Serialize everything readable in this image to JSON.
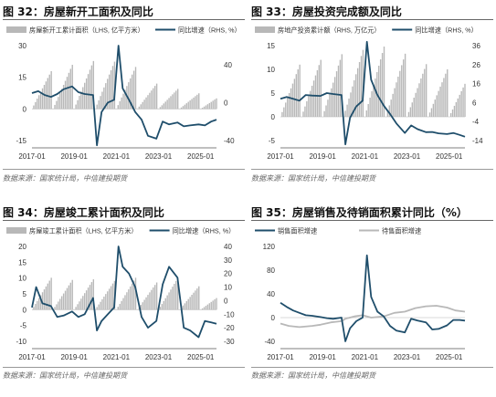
{
  "panels": [
    {
      "title": "图 32：房屋新开工面积及同比",
      "source": "数据来源：国家统计局，中信建投期货",
      "chart_data": {
        "type": "bar+line",
        "legend": [
          "房屋新开工累计面积（LHS, 亿平方米）",
          "同比增速（RHS, %）"
        ],
        "legend_placement": "top",
        "grid": false,
        "x_ticks": [
          "2017-01",
          "2019-01",
          "2021-01",
          "2023-01",
          "2025-01"
        ],
        "x_range": [
          2017.0,
          2025.75
        ],
        "ylim_left": [
          -15,
          30
        ],
        "yticks_left": [
          -15,
          0,
          15,
          30
        ],
        "ylim_right": [
          -40,
          60
        ],
        "yticks_right": [
          -40,
          0,
          40
        ],
        "bar_color": "#b8b8b8",
        "line_color": "#1f4e6b",
        "bars_annual_end": [
          17.9,
          20.9,
          22.7,
          22.4,
          19.9,
          12.0,
          9.5,
          7.4,
          6.1
        ],
        "line": [
          [
            2017.0,
            10
          ],
          [
            2017.3,
            12
          ],
          [
            2017.6,
            8
          ],
          [
            2017.9,
            6
          ],
          [
            2018.2,
            9
          ],
          [
            2018.5,
            14
          ],
          [
            2018.9,
            17
          ],
          [
            2019.2,
            11
          ],
          [
            2019.5,
            9
          ],
          [
            2019.9,
            8
          ],
          [
            2020.08,
            -45
          ],
          [
            2020.3,
            -10
          ],
          [
            2020.6,
            0
          ],
          [
            2020.9,
            3
          ],
          [
            2021.1,
            60
          ],
          [
            2021.3,
            15
          ],
          [
            2021.6,
            3
          ],
          [
            2021.9,
            -10
          ],
          [
            2022.2,
            -18
          ],
          [
            2022.5,
            -35
          ],
          [
            2022.9,
            -38
          ],
          [
            2023.2,
            -20
          ],
          [
            2023.5,
            -23
          ],
          [
            2023.9,
            -21
          ],
          [
            2024.2,
            -25
          ],
          [
            2024.5,
            -24
          ],
          [
            2024.9,
            -23
          ],
          [
            2025.2,
            -24
          ],
          [
            2025.5,
            -20
          ],
          [
            2025.75,
            -18
          ]
        ]
      }
    },
    {
      "title": "图 33：房屋投资完成额及同比",
      "source": "数据来源：国家统计局，中信建投期货",
      "chart_data": {
        "type": "bar+line",
        "legend": [
          "房地产投资累计额（RHS, 万亿元）",
          "同比增速（RHS, %）"
        ],
        "legend_placement": "top",
        "grid": false,
        "x_ticks": [
          "2017-01",
          "2019-01",
          "2021-01",
          "2023-01",
          "2025-01"
        ],
        "x_range": [
          2017.0,
          2025.75
        ],
        "ylim_left": [
          -5,
          15
        ],
        "yticks_left": [
          -5,
          0,
          5,
          10,
          15
        ],
        "ylim_right": [
          -14,
          36
        ],
        "yticks_right": [
          -14,
          -4,
          6,
          16,
          26,
          36
        ],
        "bar_color": "#b8b8b8",
        "line_color": "#1f4e6b",
        "bars_annual_end": [
          11.0,
          12.0,
          13.2,
          14.1,
          14.8,
          13.3,
          11.1,
          10.0,
          8.5
        ],
        "line": [
          [
            2017.0,
            8
          ],
          [
            2017.3,
            9
          ],
          [
            2017.6,
            8
          ],
          [
            2017.9,
            7
          ],
          [
            2018.2,
            10
          ],
          [
            2018.5,
            9.7
          ],
          [
            2018.9,
            9.5
          ],
          [
            2019.2,
            11
          ],
          [
            2019.5,
            10.5
          ],
          [
            2019.9,
            10
          ],
          [
            2020.08,
            -16
          ],
          [
            2020.3,
            -2
          ],
          [
            2020.6,
            4
          ],
          [
            2020.9,
            7
          ],
          [
            2021.1,
            38
          ],
          [
            2021.3,
            18
          ],
          [
            2021.6,
            10
          ],
          [
            2021.9,
            4.4
          ],
          [
            2022.2,
            0
          ],
          [
            2022.5,
            -5
          ],
          [
            2022.9,
            -10
          ],
          [
            2023.2,
            -6
          ],
          [
            2023.5,
            -8
          ],
          [
            2023.9,
            -9.6
          ],
          [
            2024.2,
            -9.5
          ],
          [
            2024.5,
            -10.2
          ],
          [
            2024.9,
            -10.6
          ],
          [
            2025.2,
            -10
          ],
          [
            2025.5,
            -11
          ],
          [
            2025.75,
            -12
          ]
        ]
      }
    },
    {
      "title": "图 34：房屋竣工累计面积及同比",
      "source": "数据来源：国家统计局，中信建投期货",
      "chart_data": {
        "type": "bar+line",
        "legend": [
          "房屋竣工累计面积（LHS, 亿平方米）",
          "同比增速（RHS, %）"
        ],
        "legend_placement": "top",
        "grid": false,
        "x_ticks": [
          "2017-01",
          "2019-01",
          "2021-01",
          "2023-01",
          "2025-01"
        ],
        "x_range": [
          2017.0,
          2025.75
        ],
        "ylim_left": [
          -10,
          20
        ],
        "yticks_left": [
          -10,
          -5,
          0,
          5,
          10,
          15,
          20
        ],
        "ylim_right": [
          -30,
          40
        ],
        "yticks_right": [
          -30,
          -20,
          -10,
          0,
          10,
          20,
          30,
          40
        ],
        "bar_color": "#b8b8b8",
        "line_color": "#1f4e6b",
        "bars_annual_end": [
          10.1,
          9.4,
          9.6,
          9.1,
          10.1,
          8.6,
          10.0,
          7.4,
          4.5
        ],
        "line": [
          [
            2017.0,
            -5
          ],
          [
            2017.2,
            10
          ],
          [
            2017.5,
            -2
          ],
          [
            2017.9,
            -4
          ],
          [
            2018.2,
            -12
          ],
          [
            2018.5,
            -11
          ],
          [
            2018.9,
            -8
          ],
          [
            2019.2,
            -12
          ],
          [
            2019.5,
            -10
          ],
          [
            2019.9,
            2
          ],
          [
            2020.08,
            -22
          ],
          [
            2020.3,
            -15
          ],
          [
            2020.6,
            -10
          ],
          [
            2020.9,
            -5
          ],
          [
            2021.1,
            40
          ],
          [
            2021.3,
            25
          ],
          [
            2021.6,
            20
          ],
          [
            2021.9,
            10
          ],
          [
            2022.2,
            -12
          ],
          [
            2022.5,
            -20
          ],
          [
            2022.9,
            -15
          ],
          [
            2023.2,
            12
          ],
          [
            2023.5,
            25
          ],
          [
            2023.9,
            17
          ],
          [
            2024.2,
            -20
          ],
          [
            2024.5,
            -22
          ],
          [
            2024.9,
            -27
          ],
          [
            2025.2,
            -15
          ],
          [
            2025.5,
            -16
          ],
          [
            2025.75,
            -17
          ]
        ]
      }
    },
    {
      "title": "图 35：房屋销售及待销面积累计同比（%）",
      "source": "数据来源：国家统计局，中信建投期货",
      "chart_data": {
        "type": "line",
        "legend": [
          "销售面积增速",
          "待售面积增速"
        ],
        "legend_placement": "top",
        "grid": false,
        "x_ticks": [
          "2017-01",
          "2019-01",
          "2021-01",
          "2023-01",
          "2025-01"
        ],
        "x_range": [
          2017.0,
          2025.75
        ],
        "ylim": [
          -40,
          120
        ],
        "yticks": [
          -40,
          0,
          40,
          80,
          120
        ],
        "series": [
          {
            "name": "销售面积增速",
            "color": "#1f4e6b",
            "points": [
              [
                2017.0,
                25
              ],
              [
                2017.3,
                18
              ],
              [
                2017.6,
                12
              ],
              [
                2017.9,
                8
              ],
              [
                2018.2,
                4
              ],
              [
                2018.5,
                3
              ],
              [
                2018.9,
                1
              ],
              [
                2019.2,
                -1
              ],
              [
                2019.5,
                -2
              ],
              [
                2019.9,
                0
              ],
              [
                2020.08,
                -40
              ],
              [
                2020.3,
                -18
              ],
              [
                2020.6,
                -6
              ],
              [
                2020.9,
                0
              ],
              [
                2021.1,
                105
              ],
              [
                2021.3,
                35
              ],
              [
                2021.6,
                10
              ],
              [
                2021.9,
                2
              ],
              [
                2022.2,
                -14
              ],
              [
                2022.5,
                -22
              ],
              [
                2022.9,
                -25
              ],
              [
                2023.2,
                -2
              ],
              [
                2023.5,
                -5
              ],
              [
                2023.9,
                -8
              ],
              [
                2024.2,
                -20
              ],
              [
                2024.5,
                -19
              ],
              [
                2024.9,
                -13
              ],
              [
                2025.2,
                -4
              ],
              [
                2025.5,
                -4
              ],
              [
                2025.75,
                -5
              ]
            ]
          },
          {
            "name": "待售面积增速",
            "color": "#b8b8b8",
            "points": [
              [
                2017.0,
                -10
              ],
              [
                2017.4,
                -14
              ],
              [
                2017.9,
                -16
              ],
              [
                2018.5,
                -14
              ],
              [
                2018.9,
                -12
              ],
              [
                2019.4,
                -8
              ],
              [
                2019.9,
                -6
              ],
              [
                2020.08,
                -2
              ],
              [
                2020.5,
                2
              ],
              [
                2020.9,
                4
              ],
              [
                2021.3,
                0
              ],
              [
                2021.9,
                2
              ],
              [
                2022.4,
                8
              ],
              [
                2022.9,
                10
              ],
              [
                2023.4,
                16
              ],
              [
                2023.9,
                19
              ],
              [
                2024.4,
                20
              ],
              [
                2024.9,
                17
              ],
              [
                2025.3,
                12
              ],
              [
                2025.75,
                10
              ]
            ]
          }
        ]
      }
    }
  ]
}
